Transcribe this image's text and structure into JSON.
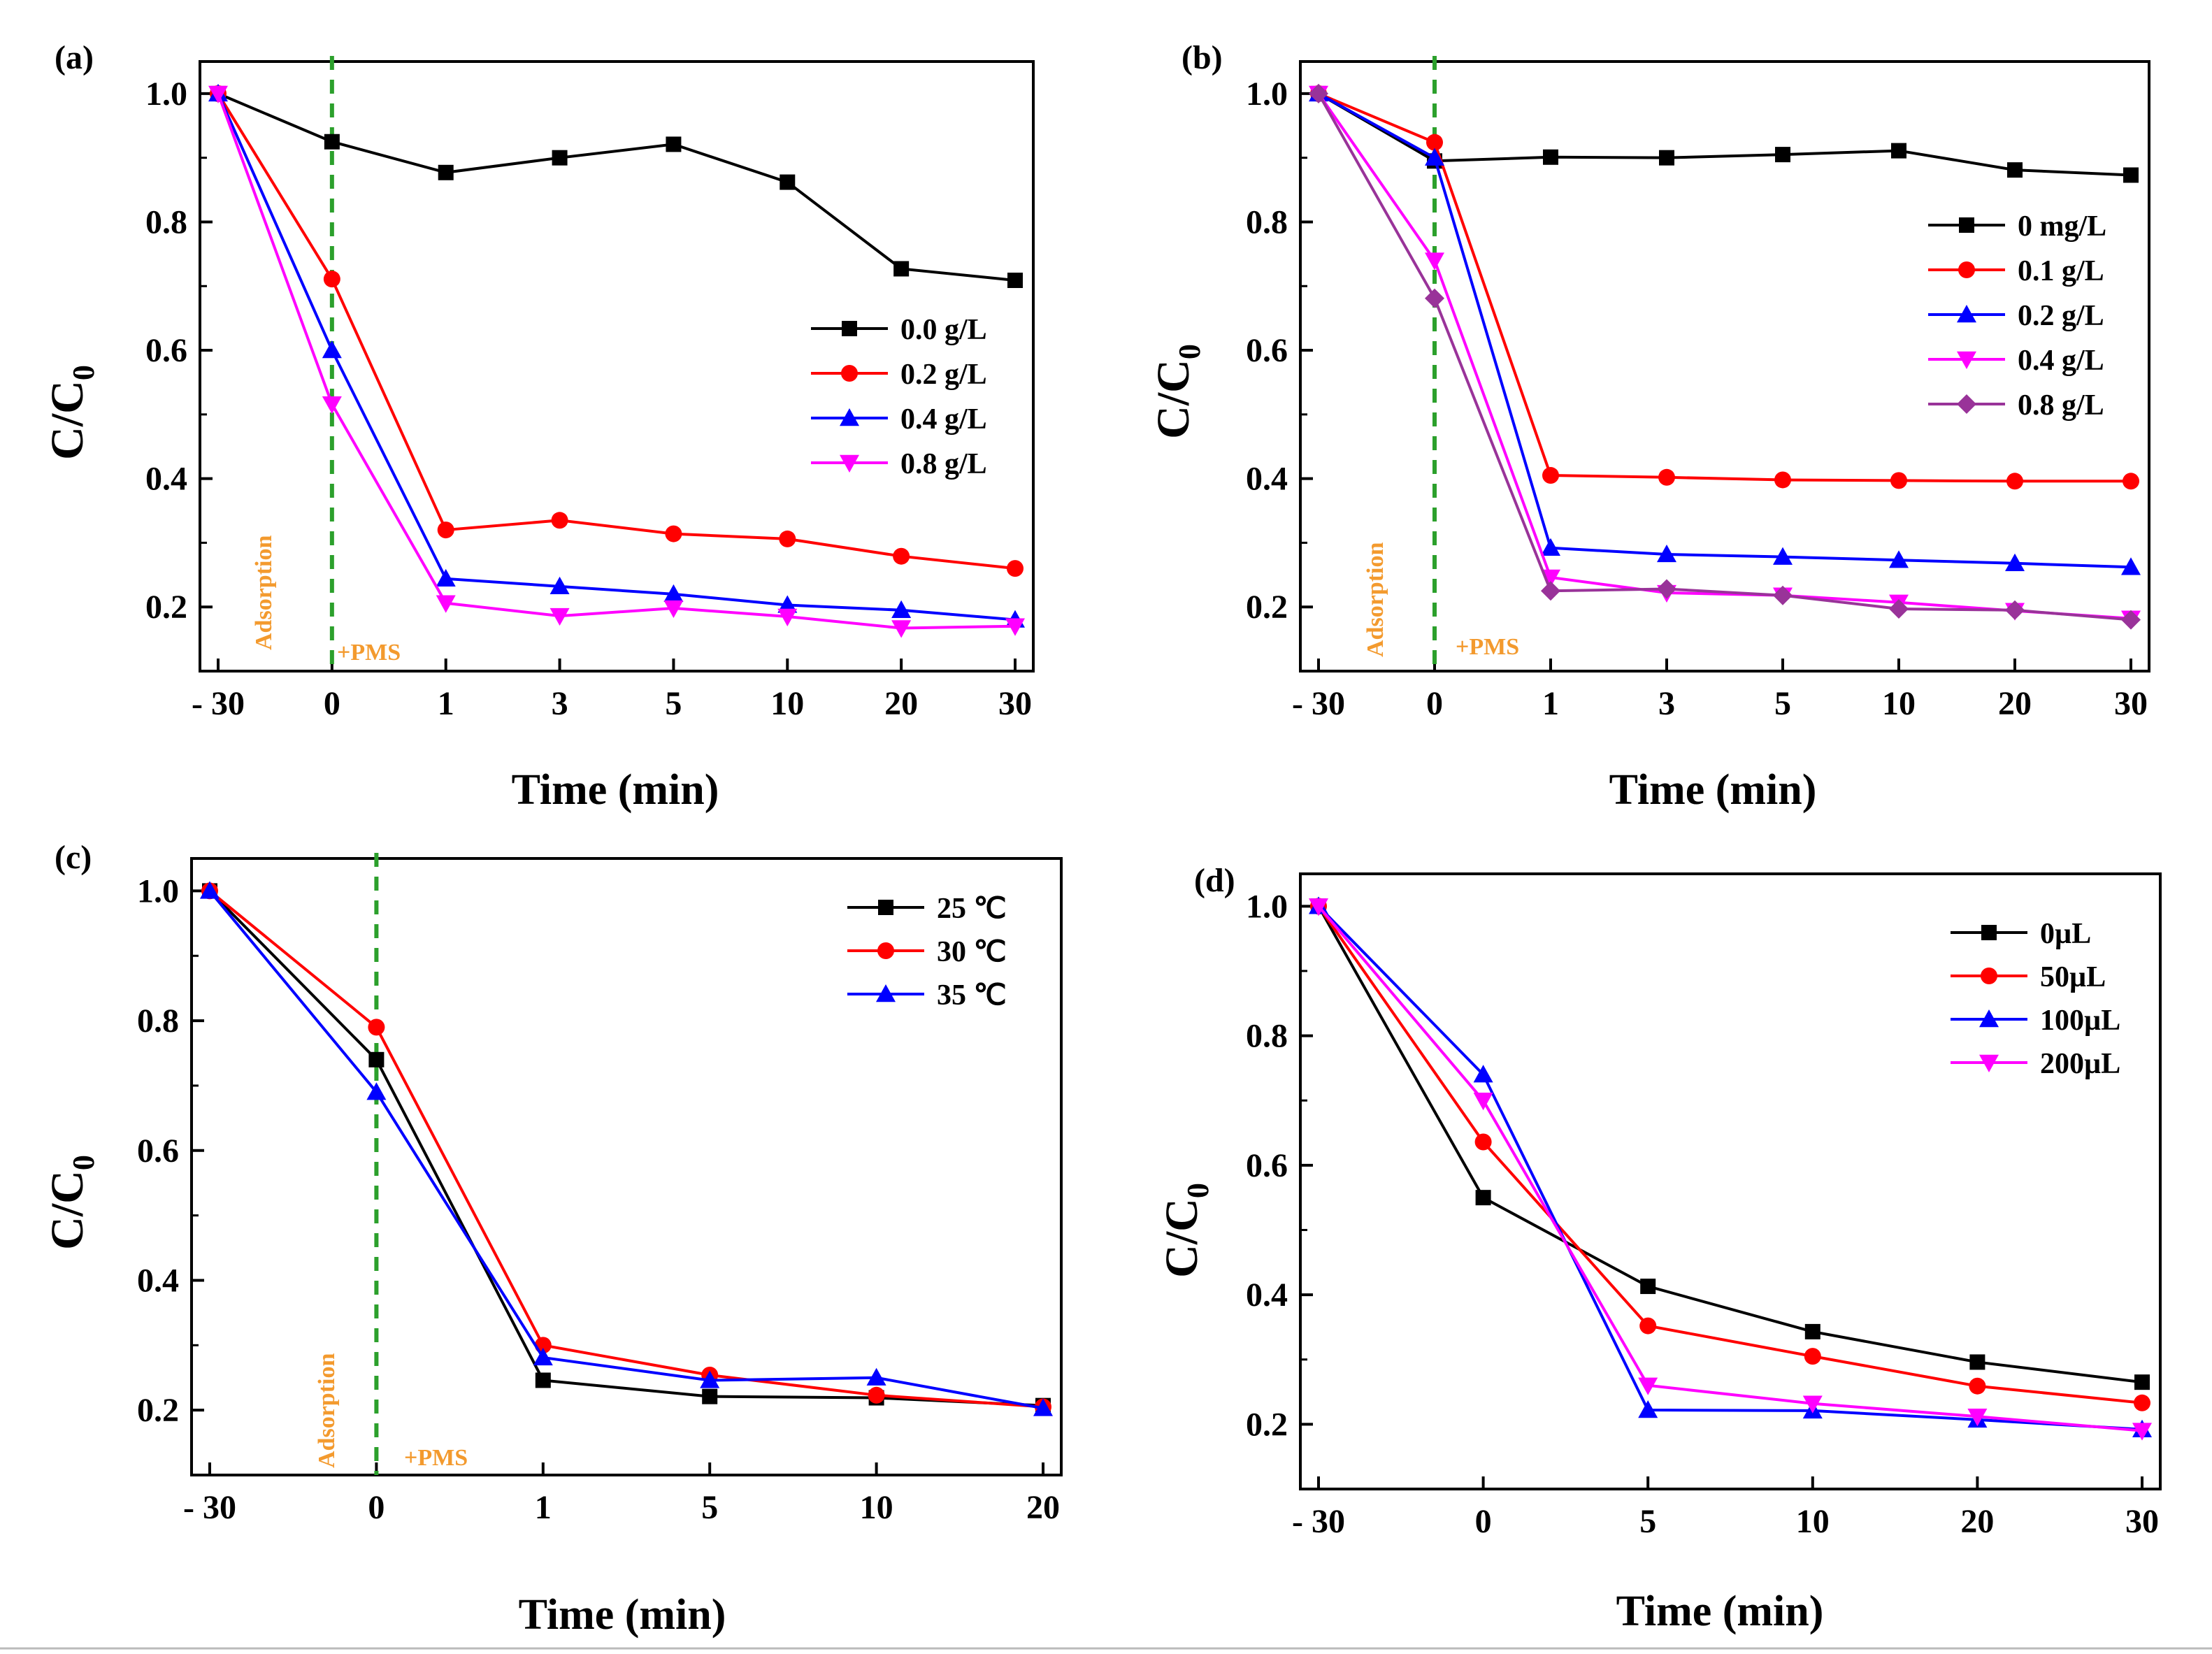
{
  "figure": {
    "bottom_rule_color": "#bbbbbb"
  },
  "colors": {
    "axis": "#000000",
    "black": "#000000",
    "red": "#ff0000",
    "blue": "#0000ff",
    "magenta": "#ff00ff",
    "purple": "#993399",
    "dashed_line": "#2ca02c",
    "annotation": "#f39a2e"
  },
  "chart_data": [
    {
      "type": "line",
      "panel_label": "(a)",
      "xlabel": "Time (min)",
      "ylabel_main": "C/C",
      "ylabel_sub": "0",
      "categories": [
        "- 30",
        "0",
        "1",
        "3",
        "5",
        "10",
        "20",
        "30"
      ],
      "ylim": [
        0.1,
        1.05
      ],
      "yticks": [
        "0.2",
        "0.4",
        "0.6",
        "0.8",
        "1.0"
      ],
      "dashed_at_category": 1,
      "annotation_adsorption": "Adsorption",
      "annotation_pms": "+PMS",
      "legend_position": "center-right",
      "series": [
        {
          "name": "0.0 g/L",
          "color": "#000000",
          "marker": "square",
          "values": [
            1.0,
            0.925,
            0.877,
            0.9,
            0.921,
            0.862,
            0.727,
            0.709
          ]
        },
        {
          "name": "0.2 g/L",
          "color": "#ff0000",
          "marker": "circle",
          "values": [
            1.0,
            0.711,
            0.32,
            0.335,
            0.314,
            0.306,
            0.279,
            0.26
          ]
        },
        {
          "name": "0.4 g/L",
          "color": "#0000ff",
          "marker": "triangle-up",
          "values": [
            1.0,
            0.6,
            0.244,
            0.232,
            0.22,
            0.203,
            0.195,
            0.18
          ]
        },
        {
          "name": "0.8 g/L",
          "color": "#ff00ff",
          "marker": "triangle-down",
          "values": [
            1.0,
            0.516,
            0.206,
            0.186,
            0.198,
            0.185,
            0.167,
            0.17
          ]
        }
      ]
    },
    {
      "type": "line",
      "panel_label": "(b)",
      "xlabel": "Time (min)",
      "ylabel_main": "C/C",
      "ylabel_sub": "0",
      "categories": [
        "- 30",
        "0",
        "1",
        "3",
        "5",
        "10",
        "20",
        "30"
      ],
      "ylim": [
        0.1,
        1.05
      ],
      "yticks": [
        "0.2",
        "0.4",
        "0.6",
        "0.8",
        "1.0"
      ],
      "dashed_at_category": 1,
      "annotation_adsorption": "Adsorption",
      "annotation_pms": "+PMS",
      "legend_position": "center-right",
      "series": [
        {
          "name": "0 mg/L",
          "color": "#000000",
          "marker": "square",
          "values": [
            1.0,
            0.895,
            0.901,
            0.9,
            0.905,
            0.911,
            0.881,
            0.873
          ]
        },
        {
          "name": "0.1 g/L",
          "color": "#ff0000",
          "marker": "circle",
          "values": [
            1.0,
            0.924,
            0.405,
            0.402,
            0.398,
            0.397,
            0.396,
            0.396
          ]
        },
        {
          "name": "0.2 g/L",
          "color": "#0000ff",
          "marker": "triangle-up",
          "values": [
            1.0,
            0.9,
            0.292,
            0.282,
            0.278,
            0.273,
            0.268,
            0.262
          ]
        },
        {
          "name": "0.4 g/L",
          "color": "#ff00ff",
          "marker": "triangle-down",
          "values": [
            1.0,
            0.74,
            0.246,
            0.222,
            0.218,
            0.207,
            0.194,
            0.182
          ]
        },
        {
          "name": "0.8 g/L",
          "color": "#993399",
          "marker": "diamond",
          "values": [
            1.0,
            0.681,
            0.225,
            0.228,
            0.218,
            0.197,
            0.195,
            0.18
          ]
        }
      ]
    },
    {
      "type": "line",
      "panel_label": "(c)",
      "xlabel": "Time (min)",
      "ylabel_main": "C/C",
      "ylabel_sub": "0",
      "categories": [
        "- 30",
        "0",
        "1",
        "5",
        "10",
        "20"
      ],
      "ylim": [
        0.1,
        1.05
      ],
      "yticks": [
        "0.2",
        "0.4",
        "0.6",
        "0.8",
        "1.0"
      ],
      "dashed_at_category": 1,
      "annotation_adsorption": "Adsorption",
      "annotation_pms": "+PMS",
      "legend_position": "top-right",
      "series": [
        {
          "name": "25 ℃",
          "color": "#000000",
          "marker": "square",
          "values": [
            1.0,
            0.74,
            0.246,
            0.221,
            0.219,
            0.207
          ]
        },
        {
          "name": "30 ℃",
          "color": "#ff0000",
          "marker": "circle",
          "values": [
            1.0,
            0.79,
            0.3,
            0.254,
            0.223,
            0.205
          ]
        },
        {
          "name": "35 ℃",
          "color": "#0000ff",
          "marker": "triangle-up",
          "values": [
            1.0,
            0.69,
            0.281,
            0.246,
            0.25,
            0.203
          ]
        }
      ]
    },
    {
      "type": "line",
      "panel_label": "(d)",
      "xlabel": "Time (min)",
      "ylabel_main": "C/C",
      "ylabel_sub": "0",
      "categories": [
        "- 30",
        "0",
        "5",
        "10",
        "20",
        "30"
      ],
      "ylim": [
        0.1,
        1.05
      ],
      "yticks": [
        "0.2",
        "0.4",
        "0.6",
        "0.8",
        "1.0"
      ],
      "dashed_at_category": null,
      "legend_position": "top-right",
      "series": [
        {
          "name": "0µL",
          "color": "#000000",
          "marker": "square",
          "values": [
            1.0,
            0.55,
            0.413,
            0.343,
            0.296,
            0.265
          ]
        },
        {
          "name": "50µL",
          "color": "#ff0000",
          "marker": "circle",
          "values": [
            1.0,
            0.636,
            0.352,
            0.305,
            0.259,
            0.233
          ]
        },
        {
          "name": "100µL",
          "color": "#0000ff",
          "marker": "triangle-up",
          "values": [
            1.0,
            0.74,
            0.222,
            0.221,
            0.207,
            0.192
          ]
        },
        {
          "name": "200µL",
          "color": "#ff00ff",
          "marker": "triangle-down",
          "values": [
            1.0,
            0.7,
            0.26,
            0.232,
            0.212,
            0.19
          ]
        }
      ]
    }
  ]
}
